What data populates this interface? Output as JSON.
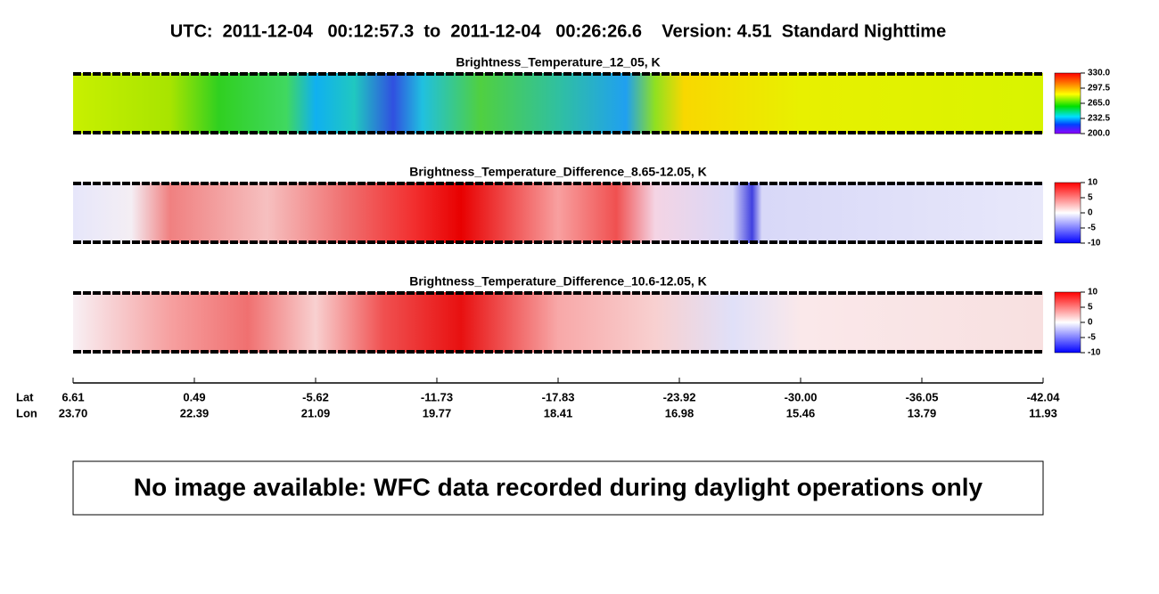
{
  "header": {
    "title": "UTC:  2011-12-04   00:12:57.3  to  2011-12-04   00:26:26.6    Version: 4.51  Standard Nighttime"
  },
  "panels": [
    {
      "title": "Brightness_Temperature_12_05, K",
      "colorbar": [
        "330.0",
        "297.5",
        "265.0",
        "232.5",
        "200.0"
      ]
    },
    {
      "title": "Brightness_Temperature_Difference_8.65-12.05, K",
      "colorbar": [
        "10",
        "5",
        "0",
        "-5",
        "-10"
      ]
    },
    {
      "title": "Brightness_Temperature_Difference_10.6-12.05, K",
      "colorbar": [
        "10",
        "5",
        "0",
        "-5",
        "-10"
      ]
    }
  ],
  "axis": {
    "lat_label": "Lat",
    "lon_label": "Lon",
    "lat": [
      "6.61",
      "0.49",
      "-5.62",
      "-11.73",
      "-17.83",
      "-23.92",
      "-30.00",
      "-36.05",
      "-42.04"
    ],
    "lon": [
      "23.70",
      "22.39",
      "21.09",
      "19.77",
      "18.41",
      "16.98",
      "15.46",
      "13.79",
      "11.93"
    ]
  },
  "notice": "No image available: WFC data recorded during daylight operations only"
}
